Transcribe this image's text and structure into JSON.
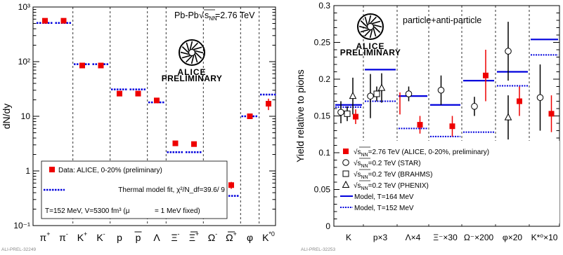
{
  "chart_data": [
    {
      "type": "scatter",
      "title": "Pb-Pb √s_NN=2.76 TeV",
      "collision": "Pb-Pb",
      "energy_label": "=2.76 TeV",
      "ylabel": "dN/dy",
      "yscale": "log",
      "ylim": [
        0.1,
        1000
      ],
      "y_tick_labels": [
        "10⁻¹",
        "1",
        "10",
        "10²",
        "10³"
      ],
      "categories": [
        {
          "label": "π",
          "sup": "+"
        },
        {
          "label": "π",
          "sup": "-"
        },
        {
          "label": "K",
          "sup": "+"
        },
        {
          "label": "K",
          "sup": "-"
        },
        {
          "label": "p",
          "sup": ""
        },
        {
          "label": "p",
          "sup": "",
          "bar": true
        },
        {
          "label": "Λ",
          "sup": ""
        },
        {
          "label": "Ξ",
          "sup": "-"
        },
        {
          "label": "Ξ",
          "sup": "+",
          "bar": true
        },
        {
          "label": "Ω",
          "sup": "-"
        },
        {
          "label": "Ω",
          "sup": "+",
          "bar": true
        },
        {
          "label": "φ",
          "sup": ""
        },
        {
          "label": "K",
          "sup": "*0"
        }
      ],
      "series": [
        {
          "name": "Data: ALICE, 0-20% (preliminary)",
          "values": [
            560,
            560,
            85,
            85,
            26,
            26,
            19.5,
            3.2,
            3.1,
            0.55,
            0.55,
            10,
            17
          ],
          "errors": [
            30,
            30,
            6,
            6,
            2,
            2,
            1.5,
            0.25,
            0.25,
            0.08,
            0.08,
            1,
            4
          ]
        },
        {
          "name": "Thermal model fit, χ²/N_df=39.6/ 9",
          "values": [
            510,
            510,
            90,
            90,
            31,
            31,
            18,
            2.2,
            2.2,
            0.35,
            0.35,
            10,
            25
          ]
        }
      ],
      "annotations": [
        "T=152 MeV, V=5300 fm³ (μ_b= 1 MeV fixed)"
      ],
      "legend": [
        {
          "text": "Data: ALICE, 0-20% (preliminary)",
          "marker": "square"
        },
        {
          "text": "Thermal model fit, χ²/N_df=39.6/ 9",
          "marker": "dash"
        }
      ],
      "params_text": "T=152 MeV, V=5300 fm³ (μ",
      "params_text2": "= 1 MeV fixed)",
      "legend_placement": "bottom-left",
      "grid": false,
      "logo_text": "ALICE",
      "logo_sub": "PRELIMINARY",
      "credit": "ALI-PREL-32249"
    },
    {
      "type": "scatter",
      "title": "particle+anti-particle",
      "ylabel": "Yield relative to pions",
      "ylim": [
        0,
        0.3
      ],
      "y_ticks": [
        0,
        0.05,
        0.1,
        0.15,
        0.2,
        0.25,
        0.3
      ],
      "y_tick_labels": [
        "0",
        "0.05",
        "0.1",
        "0.15",
        "0.2",
        "0.25",
        "0.3"
      ],
      "categories": [
        "K",
        "p×3",
        "Λ×4",
        "Ξ⁻×30",
        "Ω⁻×200",
        "φ×20",
        "K*⁰×10"
      ],
      "series": [
        {
          "name": "√s_NN=2.76 TeV (ALICE, 0-20%, preliminary)",
          "marker": "filled-square",
          "color": "#ee0000",
          "values": [
            0.149,
            null,
            0.138,
            0.136,
            0.205,
            0.17,
            0.153
          ],
          "errors": [
            0.01,
            null,
            0.012,
            0.014,
            0.035,
            0.02,
            0.025
          ],
          "p_value": 0.167,
          "p_error": 0.015
        },
        {
          "name": "√s_NN=0.2 TeV (STAR)",
          "marker": "open-circle",
          "values": [
            0.155,
            0.177,
            0.18,
            0.185,
            0.163,
            0.238,
            0.175
          ],
          "errors": [
            0.015,
            0.03,
            0.01,
            0.02,
            0.013,
            0.04,
            0.045
          ]
        },
        {
          "name": "√s_NN=0.2 TeV (BRAHMS)",
          "marker": "open-square",
          "values": [
            0.153,
            0.18,
            null,
            null,
            null,
            null,
            null
          ],
          "errors": [
            0.01,
            0.01,
            null,
            null,
            null,
            null,
            null
          ]
        },
        {
          "name": "√s_NN=0.2 TeV (PHENIX)",
          "marker": "open-triangle",
          "values": [
            0.177,
            0.188,
            null,
            null,
            null,
            0.148,
            null
          ],
          "errors": [
            0.025,
            0.02,
            null,
            null,
            null,
            0.03,
            null
          ]
        },
        {
          "name": "Model, T=164 MeV",
          "style": "solid",
          "values": [
            0.165,
            0.213,
            0.177,
            0.165,
            0.198,
            0.21,
            0.254
          ]
        },
        {
          "name": "Model, T=152 MeV",
          "style": "dotted",
          "values": [
            0.162,
            0.17,
            0.133,
            0.122,
            0.128,
            0.191,
            0.233
          ]
        }
      ],
      "legend": [
        {
          "prefix": "√s",
          "sub": "NN",
          "text": "=2.76 TeV (ALICE, 0-20%, preliminary)",
          "marker": "filled-square"
        },
        {
          "prefix": "√s",
          "sub": "NN",
          "text": "=0.2 TeV (STAR)",
          "marker": "open-circle"
        },
        {
          "prefix": "√s",
          "sub": "NN",
          "text": "=0.2 TeV (BRAHMS)",
          "marker": "open-square"
        },
        {
          "prefix": "√s",
          "sub": "NN",
          "text": "=0.2 TeV (PHENIX)",
          "marker": "open-triangle"
        },
        {
          "prefix": "",
          "sub": "",
          "text": "Model, T=164 MeV",
          "marker": "solid"
        },
        {
          "prefix": "",
          "sub": "",
          "text": "Model, T=152 MeV",
          "marker": "dotted"
        }
      ],
      "legend_placement": "bottom-left",
      "grid": false,
      "logo_text": "ALICE",
      "logo_sub": "PRELIMINARY",
      "credit": "ALI-PREL-32253"
    }
  ],
  "colors": {
    "data": "#ee0000",
    "model": "#0000dd",
    "frame": "#000000"
  }
}
